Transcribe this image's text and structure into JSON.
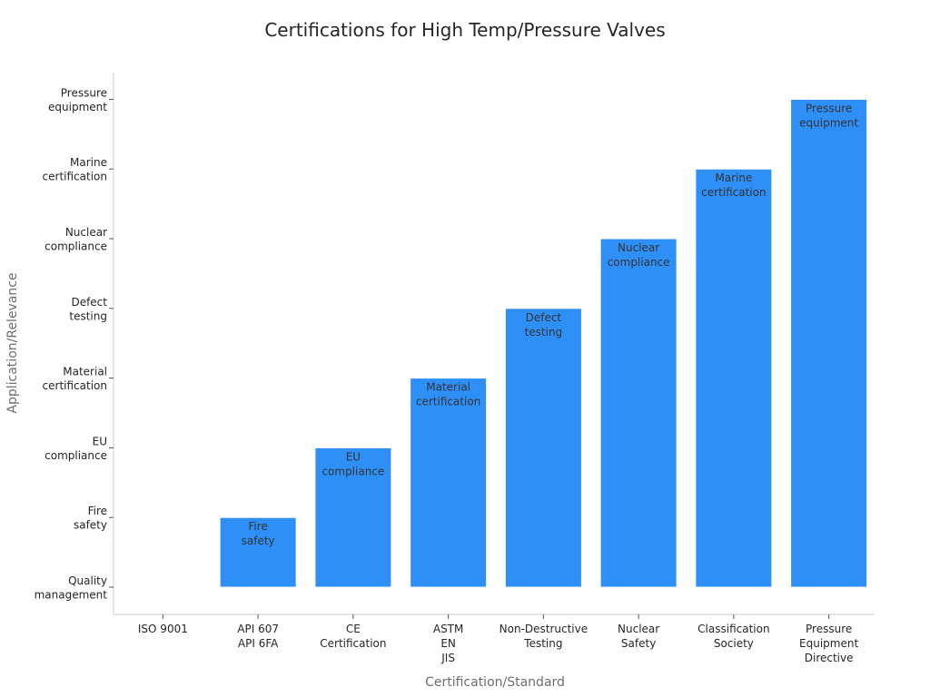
{
  "chart_data": {
    "type": "bar",
    "title": "Certifications for High Temp/Pressure Valves",
    "xlabel": "Certification/Standard",
    "ylabel": "Application/Relevance",
    "categories": [
      [
        "ISO 9001"
      ],
      [
        "API 607",
        "API 6FA"
      ],
      [
        "CE",
        "Certification"
      ],
      [
        "ASTM",
        "EN",
        "JIS"
      ],
      [
        "Non-Destructive",
        "Testing"
      ],
      [
        "Nuclear",
        "Safety"
      ],
      [
        "Classification",
        "Society"
      ],
      [
        "Pressure",
        "Equipment",
        "Directive"
      ]
    ],
    "y_categories": [
      [
        "Quality",
        "management"
      ],
      [
        "Fire",
        "safety"
      ],
      [
        "EU",
        "compliance"
      ],
      [
        "Material",
        "certification"
      ],
      [
        "Defect",
        "testing"
      ],
      [
        "Nuclear",
        "compliance"
      ],
      [
        "Marine",
        "certification"
      ],
      [
        "Pressure",
        "equipment"
      ]
    ],
    "values": [
      0,
      1,
      2,
      3,
      4,
      5,
      6,
      7
    ],
    "bar_labels": [
      [],
      [
        "Fire",
        "safety"
      ],
      [
        "EU",
        "compliance"
      ],
      [
        "Material",
        "certification"
      ],
      [
        "Defect",
        "testing"
      ],
      [
        "Nuclear",
        "compliance"
      ],
      [
        "Marine",
        "certification"
      ],
      [
        "Pressure",
        "equipment"
      ]
    ],
    "ylim": [
      -0.4,
      7.4
    ],
    "bar_color": "#2e8ff7",
    "bar_edge_color": "#ffffff",
    "grid": false,
    "legend": "none"
  }
}
